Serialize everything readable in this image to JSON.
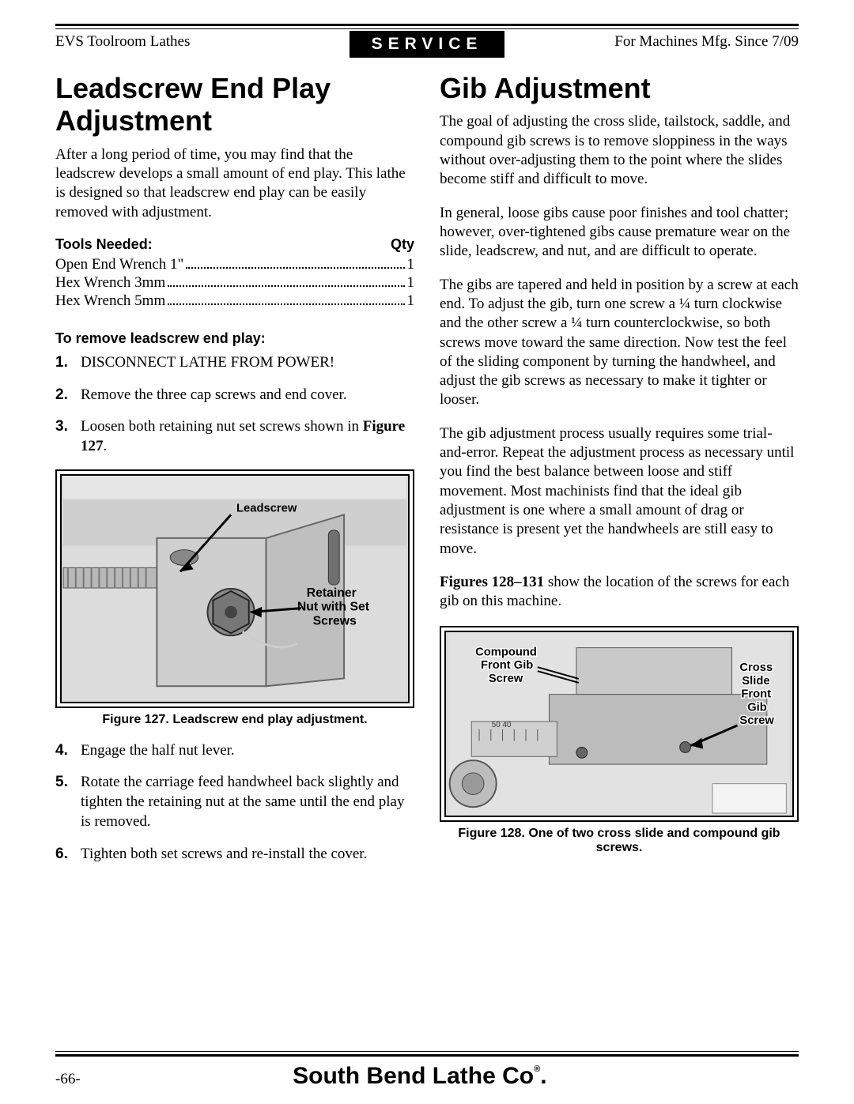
{
  "header": {
    "left": "EVS Toolroom Lathes",
    "center": "SERVICE",
    "right": "For Machines Mfg. Since 7/09"
  },
  "left_col": {
    "title": "Leadscrew End Play Adjustment",
    "intro": "After a long period of time, you may find that the leadscrew develops a small amount of end play. This lathe is designed so that leadscrew end play can be easily removed with adjustment.",
    "tools_header_left": "Tools Needed:",
    "tools_header_right": "Qty",
    "tools": [
      {
        "name": "Open End Wrench 1\"",
        "qty": "1"
      },
      {
        "name": "Hex Wrench 3mm",
        "qty": "1"
      },
      {
        "name": "Hex Wrench 5mm",
        "qty": "1"
      }
    ],
    "procedure_head": "To remove leadscrew end play:",
    "steps_a": [
      {
        "n": "1.",
        "text": "DISCONNECT LATHE FROM POWER!"
      },
      {
        "n": "2.",
        "text": "Remove the three cap screws and end cover."
      },
      {
        "n": "3.",
        "text_html": "Loosen both retaining nut set screws shown in <b>Figure 127</b>."
      }
    ],
    "fig127": {
      "labels": {
        "leadscrew": "Leadscrew",
        "retainer1": "Retainer",
        "retainer2": "Nut with Set",
        "retainer3": "Screws"
      },
      "caption": "Figure 127. Leadscrew end play adjustment."
    },
    "steps_b": [
      {
        "n": "4.",
        "text": "Engage the half nut lever."
      },
      {
        "n": "5.",
        "text": "Rotate the carriage feed handwheel back slightly and tighten the retaining nut at the same until the end play is removed."
      },
      {
        "n": "6.",
        "text": "Tighten both set screws and re-install the cover."
      }
    ]
  },
  "right_col": {
    "title": "Gib Adjustment",
    "paras": [
      "The goal of adjusting the cross slide, tailstock, saddle, and compound gib screws is to remove sloppiness in the ways without over-adjusting them to the point where the slides become stiff and difficult to move.",
      "In general, loose gibs cause poor finishes and tool chatter; however, over-tightened gibs cause premature wear on the slide, leadscrew, and nut, and are difficult to operate.",
      "The gibs are tapered and held in position by a screw at each end. To adjust the gib, turn one screw a ¼ turn clockwise and the other screw a ¼ turn counterclockwise, so both screws move toward the same direction. Now test the feel of the sliding component by turning the handwheel, and adjust the gib screws as necessary to make it tighter or looser.",
      "The gib adjustment process usually requires some trial-and-error. Repeat the adjustment process as necessary until you find the best balance between loose and stiff movement. Most machinists find that the ideal gib adjustment is one where a small amount of drag or resistance is present yet the handwheels are still easy to move."
    ],
    "para_figref_html": "<b>Figures 128–131</b> show the location of the screws for each gib on this machine.",
    "fig128": {
      "labels": {
        "compound1": "Compound",
        "compound2": "Front Gib",
        "compound3": "Screw",
        "cross1": "Cross",
        "cross2": "Slide",
        "cross3": "Front",
        "cross4": "Gib",
        "cross5": "Screw"
      },
      "caption": "Figure 128. One of two cross slide and compound gib screws."
    }
  },
  "footer": {
    "page": "-66-",
    "company": "South Bend Lathe Co",
    "reg": "®",
    "dot": "."
  }
}
